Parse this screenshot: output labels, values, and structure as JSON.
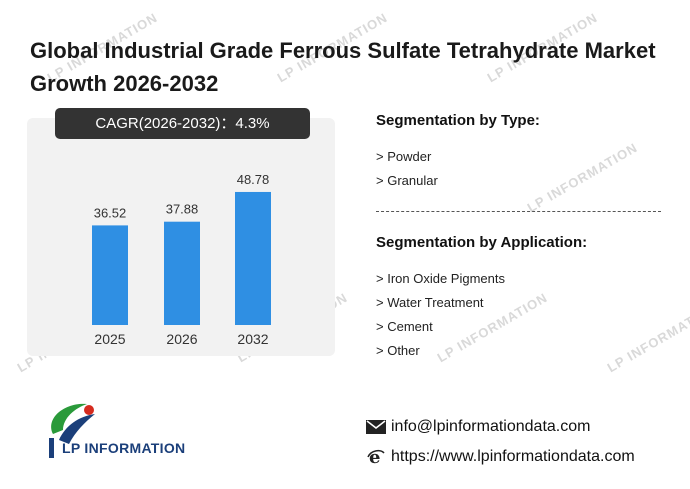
{
  "title": "Global Industrial Grade Ferrous Sulfate Tetrahydrate Market Growth 2026-2032",
  "cagr_label": "CAGR(2026-2032)：4.3%",
  "watermark_text": "LP INFORMATION",
  "chart_data": {
    "type": "bar",
    "categories": [
      "2025",
      "2026",
      "2032"
    ],
    "values": [
      36.52,
      37.88,
      48.78
    ],
    "value_labels": [
      "36.52",
      "37.88",
      "48.78"
    ],
    "title": "",
    "xlabel": "",
    "ylabel": "",
    "ylim": [
      0,
      55
    ],
    "grid": false,
    "bar_color": "#2f8fe3"
  },
  "segmentation_type": {
    "heading": "Segmentation by Type:",
    "items": [
      "> Powder",
      "> Granular"
    ]
  },
  "segmentation_application": {
    "heading": "Segmentation by Application:",
    "items": [
      "> Iron Oxide Pigments",
      "> Water Treatment",
      "> Cement",
      "> Other"
    ]
  },
  "logo": {
    "text": "LP INFORMATION"
  },
  "contact": {
    "email": "info@lpinformationdata.com",
    "website": "https://www.lpinformationdata.com",
    "email_icon": "mail-icon",
    "website_icon": "browser-e-icon"
  },
  "colors": {
    "bar": "#2f8fe3",
    "cagr_bg": "#333333",
    "logo_blue": "#1b3f7a",
    "logo_green": "#2a9a3a",
    "logo_red": "#d52b1e"
  }
}
